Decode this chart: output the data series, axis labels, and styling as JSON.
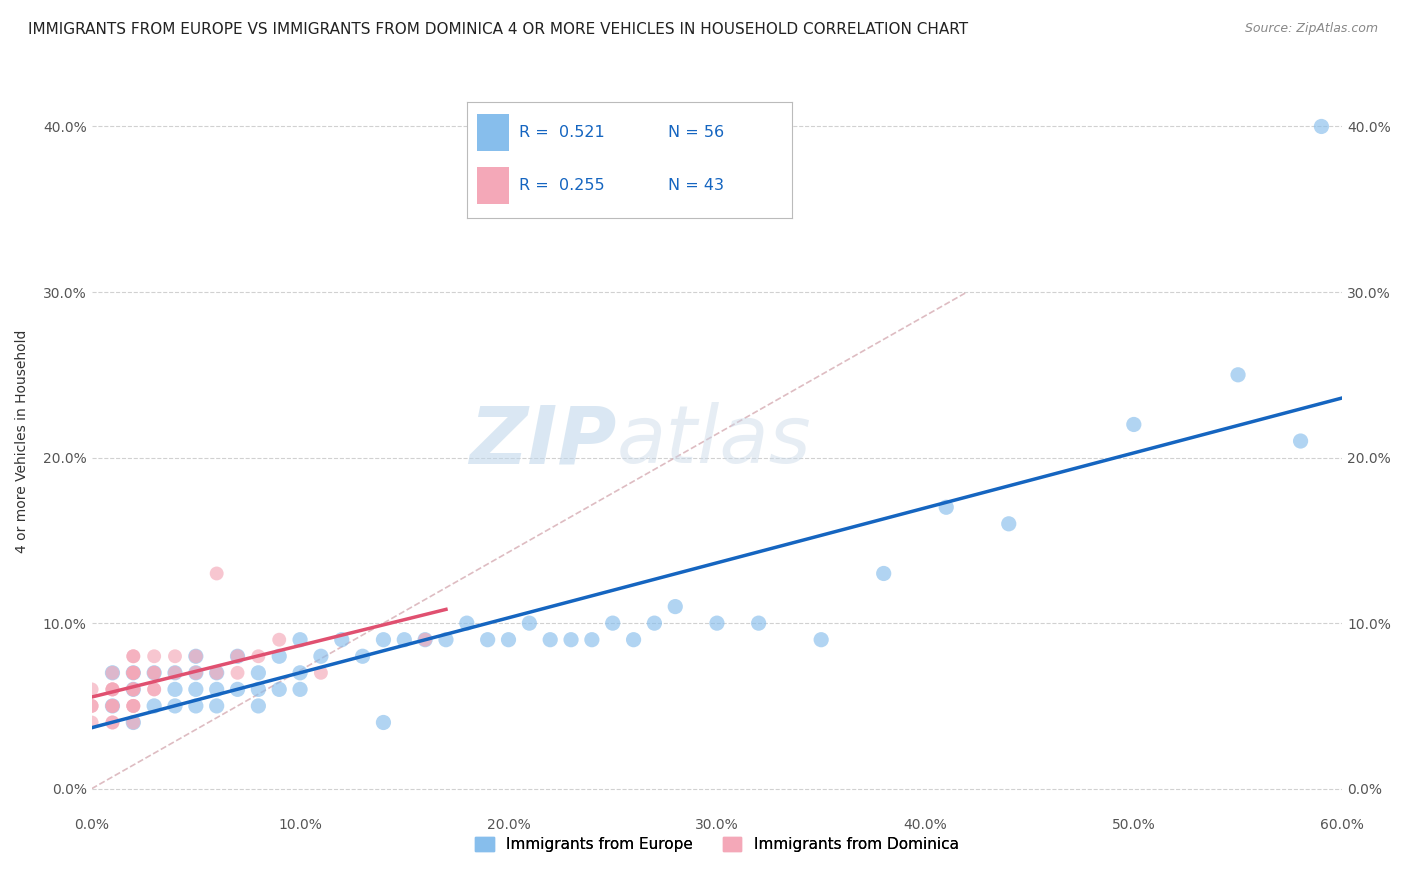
{
  "title": "IMMIGRANTS FROM EUROPE VS IMMIGRANTS FROM DOMINICA 4 OR MORE VEHICLES IN HOUSEHOLD CORRELATION CHART",
  "source": "Source: ZipAtlas.com",
  "ylabel": "4 or more Vehicles in Household",
  "legend_label_blue": "Immigrants from Europe",
  "legend_label_pink": "Immigrants from Dominica",
  "r_blue": "0.521",
  "n_blue": "56",
  "r_pink": "0.255",
  "n_pink": "43",
  "xlim": [
    0.0,
    0.6
  ],
  "ylim": [
    -0.015,
    0.435
  ],
  "xticks": [
    0.0,
    0.1,
    0.2,
    0.3,
    0.4,
    0.5,
    0.6
  ],
  "xticklabels": [
    "0.0%",
    "10.0%",
    "20.0%",
    "30.0%",
    "40.0%",
    "50.0%",
    "60.0%"
  ],
  "yticks": [
    0.0,
    0.1,
    0.2,
    0.3,
    0.4
  ],
  "yticklabels": [
    "0.0%",
    "10.0%",
    "20.0%",
    "30.0%",
    "40.0%"
  ],
  "color_blue": "#87BEEC",
  "color_pink": "#F4A8B8",
  "color_line_blue": "#1565C0",
  "color_line_pink": "#E05070",
  "color_diag": "#D0A0A8",
  "background_color": "#FFFFFF",
  "watermark_zip": "ZIP",
  "watermark_atlas": "atlas",
  "blue_points_x": [
    0.01,
    0.01,
    0.02,
    0.02,
    0.02,
    0.03,
    0.03,
    0.04,
    0.04,
    0.04,
    0.05,
    0.05,
    0.05,
    0.05,
    0.06,
    0.06,
    0.06,
    0.07,
    0.07,
    0.08,
    0.08,
    0.08,
    0.09,
    0.09,
    0.1,
    0.1,
    0.1,
    0.11,
    0.12,
    0.13,
    0.14,
    0.14,
    0.15,
    0.16,
    0.17,
    0.18,
    0.19,
    0.2,
    0.21,
    0.22,
    0.23,
    0.24,
    0.25,
    0.26,
    0.27,
    0.28,
    0.3,
    0.32,
    0.35,
    0.38,
    0.41,
    0.44,
    0.5,
    0.55,
    0.58,
    0.59
  ],
  "blue_points_y": [
    0.05,
    0.07,
    0.06,
    0.07,
    0.04,
    0.07,
    0.05,
    0.07,
    0.06,
    0.05,
    0.08,
    0.07,
    0.06,
    0.05,
    0.07,
    0.06,
    0.05,
    0.08,
    0.06,
    0.07,
    0.06,
    0.05,
    0.08,
    0.06,
    0.09,
    0.07,
    0.06,
    0.08,
    0.09,
    0.08,
    0.04,
    0.09,
    0.09,
    0.09,
    0.09,
    0.1,
    0.09,
    0.09,
    0.1,
    0.09,
    0.09,
    0.09,
    0.1,
    0.09,
    0.1,
    0.11,
    0.1,
    0.1,
    0.09,
    0.13,
    0.17,
    0.16,
    0.22,
    0.25,
    0.21,
    0.4
  ],
  "pink_points_x": [
    0.0,
    0.0,
    0.0,
    0.0,
    0.01,
    0.01,
    0.01,
    0.01,
    0.01,
    0.01,
    0.01,
    0.01,
    0.01,
    0.02,
    0.02,
    0.02,
    0.02,
    0.02,
    0.02,
    0.02,
    0.02,
    0.02,
    0.02,
    0.02,
    0.02,
    0.02,
    0.03,
    0.03,
    0.03,
    0.03,
    0.03,
    0.04,
    0.04,
    0.05,
    0.05,
    0.06,
    0.06,
    0.07,
    0.07,
    0.08,
    0.09,
    0.11,
    0.16
  ],
  "pink_points_y": [
    0.04,
    0.05,
    0.05,
    0.06,
    0.04,
    0.05,
    0.06,
    0.05,
    0.06,
    0.07,
    0.04,
    0.05,
    0.06,
    0.05,
    0.06,
    0.05,
    0.06,
    0.07,
    0.07,
    0.08,
    0.04,
    0.05,
    0.06,
    0.07,
    0.07,
    0.08,
    0.06,
    0.07,
    0.06,
    0.08,
    0.07,
    0.07,
    0.08,
    0.07,
    0.08,
    0.07,
    0.13,
    0.08,
    0.07,
    0.08,
    0.09,
    0.07,
    0.09
  ],
  "title_fontsize": 11,
  "axis_label_fontsize": 10,
  "tick_fontsize": 10,
  "legend_fontsize": 11
}
